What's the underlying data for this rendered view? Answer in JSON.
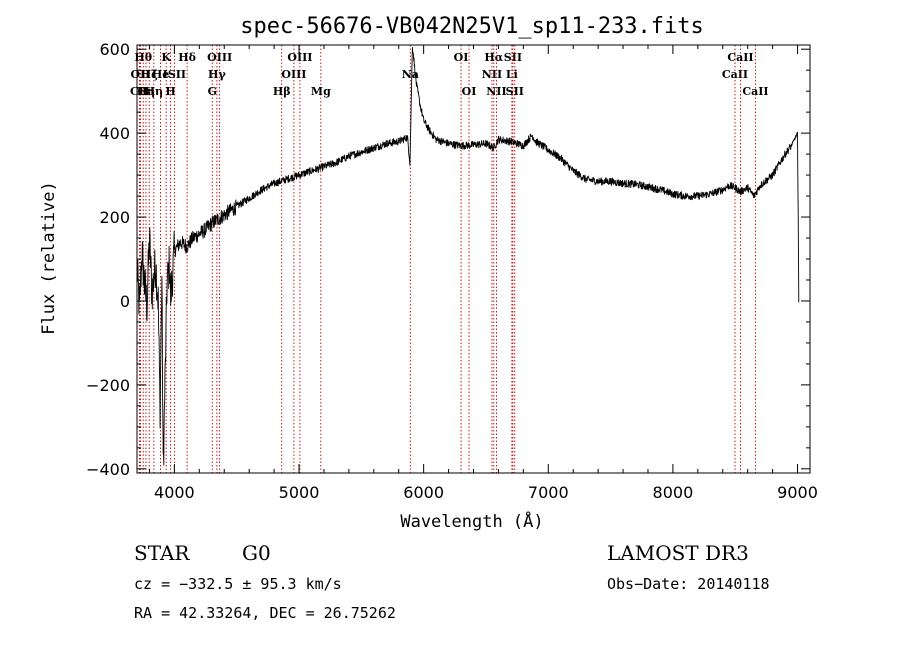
{
  "chart_data": {
    "type": "line",
    "title": "spec-56676-VB042N25V1_sp11-233.fits",
    "xlabel": "Wavelength (Å)",
    "ylabel": "Flux (relative)",
    "xlim": [
      3700,
      9100
    ],
    "ylim": [
      -410,
      610
    ],
    "xticks": [
      {
        "value": 4000,
        "label": "4000"
      },
      {
        "value": 5000,
        "label": "5000"
      },
      {
        "value": 6000,
        "label": "6000"
      },
      {
        "value": 7000,
        "label": "7000"
      },
      {
        "value": 8000,
        "label": "8000"
      },
      {
        "value": 9000,
        "label": "9000"
      }
    ],
    "yticks": [
      {
        "value": -400,
        "label": "−400"
      },
      {
        "value": -200,
        "label": "−200"
      },
      {
        "value": 0,
        "label": "0"
      },
      {
        "value": 200,
        "label": "200"
      },
      {
        "value": 400,
        "label": "400"
      },
      {
        "value": 600,
        "label": "600"
      }
    ],
    "spectrum_anchors": [
      [
        3700,
        80
      ],
      [
        3720,
        -20
      ],
      [
        3740,
        120
      ],
      [
        3760,
        40
      ],
      [
        3780,
        -10
      ],
      [
        3800,
        150
      ],
      [
        3820,
        20
      ],
      [
        3850,
        90
      ],
      [
        3870,
        0
      ],
      [
        3885,
        -250
      ],
      [
        3900,
        60
      ],
      [
        3910,
        -410
      ],
      [
        3930,
        -120
      ],
      [
        3940,
        30
      ],
      [
        3960,
        90
      ],
      [
        3970,
        10
      ],
      [
        4000,
        120
      ],
      [
        4050,
        140
      ],
      [
        4100,
        130
      ],
      [
        4150,
        150
      ],
      [
        4200,
        160
      ],
      [
        4250,
        170
      ],
      [
        4300,
        185
      ],
      [
        4350,
        195
      ],
      [
        4400,
        205
      ],
      [
        4500,
        225
      ],
      [
        4600,
        245
      ],
      [
        4700,
        265
      ],
      [
        4800,
        280
      ],
      [
        4900,
        290
      ],
      [
        5000,
        300
      ],
      [
        5100,
        310
      ],
      [
        5200,
        320
      ],
      [
        5300,
        330
      ],
      [
        5400,
        345
      ],
      [
        5500,
        355
      ],
      [
        5600,
        365
      ],
      [
        5700,
        375
      ],
      [
        5800,
        380
      ],
      [
        5870,
        390
      ],
      [
        5890,
        330
      ],
      [
        5910,
        610
      ],
      [
        5940,
        520
      ],
      [
        5970,
        470
      ],
      [
        6000,
        430
      ],
      [
        6050,
        405
      ],
      [
        6100,
        385
      ],
      [
        6200,
        375
      ],
      [
        6300,
        370
      ],
      [
        6400,
        372
      ],
      [
        6500,
        375
      ],
      [
        6560,
        365
      ],
      [
        6600,
        385
      ],
      [
        6700,
        380
      ],
      [
        6800,
        370
      ],
      [
        6870,
        395
      ],
      [
        6900,
        380
      ],
      [
        7000,
        360
      ],
      [
        7100,
        340
      ],
      [
        7200,
        310
      ],
      [
        7300,
        290
      ],
      [
        7400,
        285
      ],
      [
        7500,
        285
      ],
      [
        7600,
        280
      ],
      [
        7700,
        278
      ],
      [
        7800,
        272
      ],
      [
        7900,
        265
      ],
      [
        8000,
        255
      ],
      [
        8100,
        250
      ],
      [
        8200,
        250
      ],
      [
        8300,
        255
      ],
      [
        8400,
        265
      ],
      [
        8450,
        275
      ],
      [
        8500,
        270
      ],
      [
        8540,
        260
      ],
      [
        8600,
        270
      ],
      [
        8650,
        250
      ],
      [
        8700,
        275
      ],
      [
        8800,
        300
      ],
      [
        8900,
        350
      ],
      [
        8950,
        370
      ],
      [
        9000,
        400
      ],
      [
        9010,
        0
      ]
    ],
    "lines": [
      {
        "wave": 3720,
        "label": "CII",
        "row": 2
      },
      {
        "wave": 3728,
        "label": "OII",
        "row": 1
      },
      {
        "wave": 3750,
        "label": "Hθ",
        "row": 0
      },
      {
        "wave": 3772,
        "label": "Hη",
        "row": 2
      },
      {
        "wave": 3798,
        "label": "Hζ",
        "row": 1
      },
      {
        "wave": 3835,
        "label": "Hη",
        "row": 2
      },
      {
        "wave": 3889,
        "label": "He",
        "row": 1
      },
      {
        "wave": 3934,
        "label": "K",
        "row": 0
      },
      {
        "wave": 3969,
        "label": "H",
        "row": 2
      },
      {
        "wave": 4000,
        "label": "ISII",
        "row": 1
      },
      {
        "wave": 4102,
        "label": "Hδ",
        "row": 0
      },
      {
        "wave": 4304,
        "label": "G",
        "row": 2
      },
      {
        "wave": 4341,
        "label": "Hγ",
        "row": 1
      },
      {
        "wave": 4363,
        "label": "OIII",
        "row": 0
      },
      {
        "wave": 4861,
        "label": "Hβ",
        "row": 2
      },
      {
        "wave": 4959,
        "label": "OIII",
        "row": 1
      },
      {
        "wave": 5007,
        "label": "OIII",
        "row": 0
      },
      {
        "wave": 5175,
        "label": "Mg",
        "row": 2
      },
      {
        "wave": 5893,
        "label": "Na",
        "row": 1
      },
      {
        "wave": 6300,
        "label": "OI",
        "row": 0
      },
      {
        "wave": 6364,
        "label": "OI",
        "row": 2
      },
      {
        "wave": 6548,
        "label": "NII",
        "row": 1
      },
      {
        "wave": 6563,
        "label": "Hα",
        "row": 0
      },
      {
        "wave": 6584,
        "label": "NII",
        "row": 2
      },
      {
        "wave": 6708,
        "label": "Li",
        "row": 1
      },
      {
        "wave": 6716,
        "label": "SII",
        "row": 0
      },
      {
        "wave": 6731,
        "label": "SII",
        "row": 2
      },
      {
        "wave": 8498,
        "label": "CaII",
        "row": 1
      },
      {
        "wave": 8542,
        "label": "CaII",
        "row": 0
      },
      {
        "wave": 8662,
        "label": "CaII",
        "row": 2
      }
    ]
  },
  "info": {
    "class": "STAR",
    "subclass": "G0",
    "survey": "LAMOST DR3",
    "cz": "cz = −332.5 ± 95.3 km/s",
    "obs_date": "Obs−Date: 20140118",
    "coords": "RA =  42.33264, DEC =  26.75262"
  }
}
